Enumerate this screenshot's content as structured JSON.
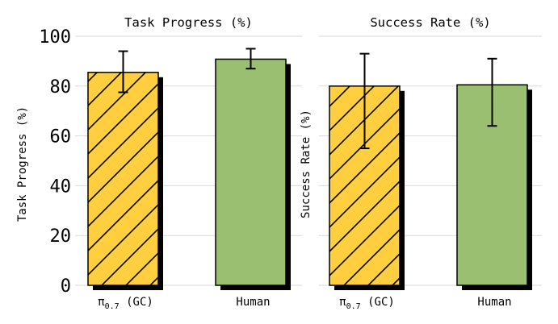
{
  "chart_data": [
    {
      "type": "bar",
      "title": "Task Progress (%)",
      "ylabel": "Task Progress (%)",
      "categories": [
        "π0.7 (GC)",
        "Human"
      ],
      "category_display": [
        {
          "main": "π",
          "sub": "0.7",
          "rest": " (GC)"
        },
        {
          "main": "Human",
          "sub": "",
          "rest": ""
        }
      ],
      "values": [
        85.5,
        90.8
      ],
      "error_low": [
        77.5,
        87
      ],
      "error_high": [
        94,
        95
      ],
      "ylim": [
        0,
        100
      ],
      "yticks": [
        "0",
        "20",
        "40",
        "60",
        "80",
        "100"
      ],
      "grid": true,
      "legend": "none"
    },
    {
      "type": "bar",
      "title": "Success Rate (%)",
      "ylabel": "Success Rate (%)",
      "categories": [
        "π0.7 (GC)",
        "Human"
      ],
      "category_display": [
        {
          "main": "π",
          "sub": "0.7",
          "rest": " (GC)"
        },
        {
          "main": "Human",
          "sub": "",
          "rest": ""
        }
      ],
      "values": [
        80,
        80.5
      ],
      "error_low": [
        55,
        64
      ],
      "error_high": [
        93,
        91
      ],
      "ylim": [
        0,
        100
      ],
      "grid": true,
      "legend": "none"
    }
  ],
  "colors": {
    "bar_1": "#FFCF40",
    "bar_2": "#9BBF70",
    "shadow": "#000000",
    "grid": "#d9d9d9"
  },
  "bar_patterns": [
    "diagonal-hatch",
    "solid"
  ]
}
